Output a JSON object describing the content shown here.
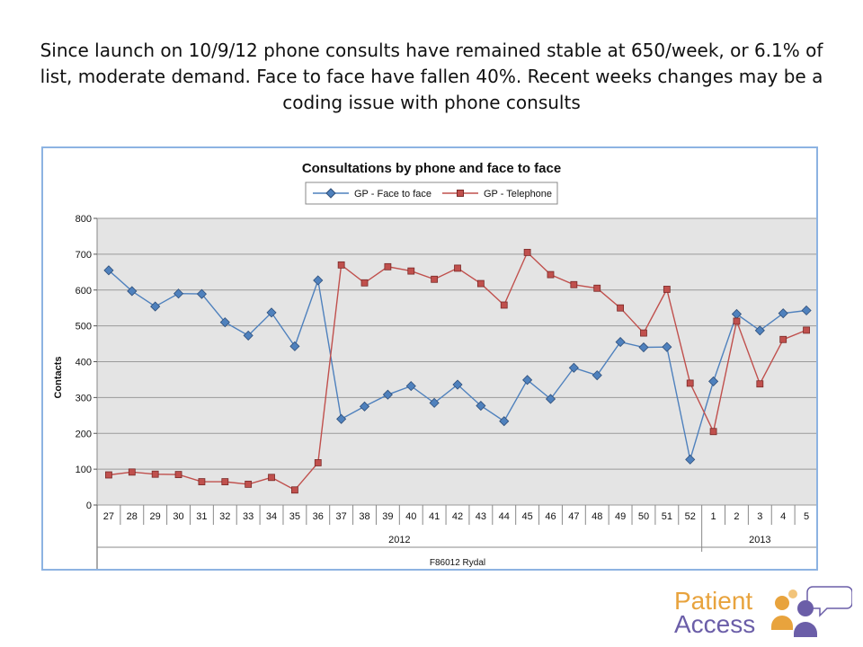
{
  "headline": "Since launch on 10/9/12 phone consults have remained stable at 650/week, or 6.1% of list, moderate demand. Face to face have fallen 40%. Recent weeks changes may be a coding issue with phone consults",
  "logo": {
    "line1": "Patient",
    "line2": "Access"
  },
  "colors": {
    "face": "#4f81bd",
    "phone": "#c0504d",
    "plot_bg": "#e4e4e4"
  },
  "chart_data": {
    "type": "line",
    "title": "Consultations by phone and face to face",
    "ylabel": "Contacts",
    "xlabel": "F86012 Rydal",
    "ylim": [
      0,
      800
    ],
    "yticks": [
      0,
      100,
      200,
      300,
      400,
      500,
      600,
      700,
      800
    ],
    "grid": true,
    "legend_position": "top",
    "categories": [
      "27",
      "28",
      "29",
      "30",
      "31",
      "32",
      "33",
      "34",
      "35",
      "36",
      "37",
      "38",
      "39",
      "40",
      "41",
      "42",
      "43",
      "44",
      "45",
      "46",
      "47",
      "48",
      "49",
      "50",
      "51",
      "52",
      "1",
      "2",
      "3",
      "4",
      "5"
    ],
    "year_groups": [
      {
        "label": "2012",
        "start": 0,
        "end": 25
      },
      {
        "label": "2013",
        "start": 26,
        "end": 30
      }
    ],
    "series": [
      {
        "name": "GP - Face to face",
        "marker": "diamond",
        "values": [
          655,
          597,
          554,
          590,
          589,
          510,
          473,
          537,
          443,
          627,
          240,
          275,
          308,
          332,
          285,
          336,
          277,
          234,
          349,
          296,
          383,
          362,
          455,
          440,
          441,
          127,
          345,
          533,
          487,
          535,
          543
        ]
      },
      {
        "name": "GP - Telephone",
        "marker": "square",
        "values": [
          84,
          92,
          86,
          85,
          65,
          65,
          58,
          77,
          42,
          118,
          670,
          620,
          665,
          653,
          630,
          661,
          618,
          558,
          705,
          643,
          615,
          605,
          550,
          480,
          602,
          340,
          205,
          513,
          338,
          462,
          488
        ]
      }
    ]
  }
}
